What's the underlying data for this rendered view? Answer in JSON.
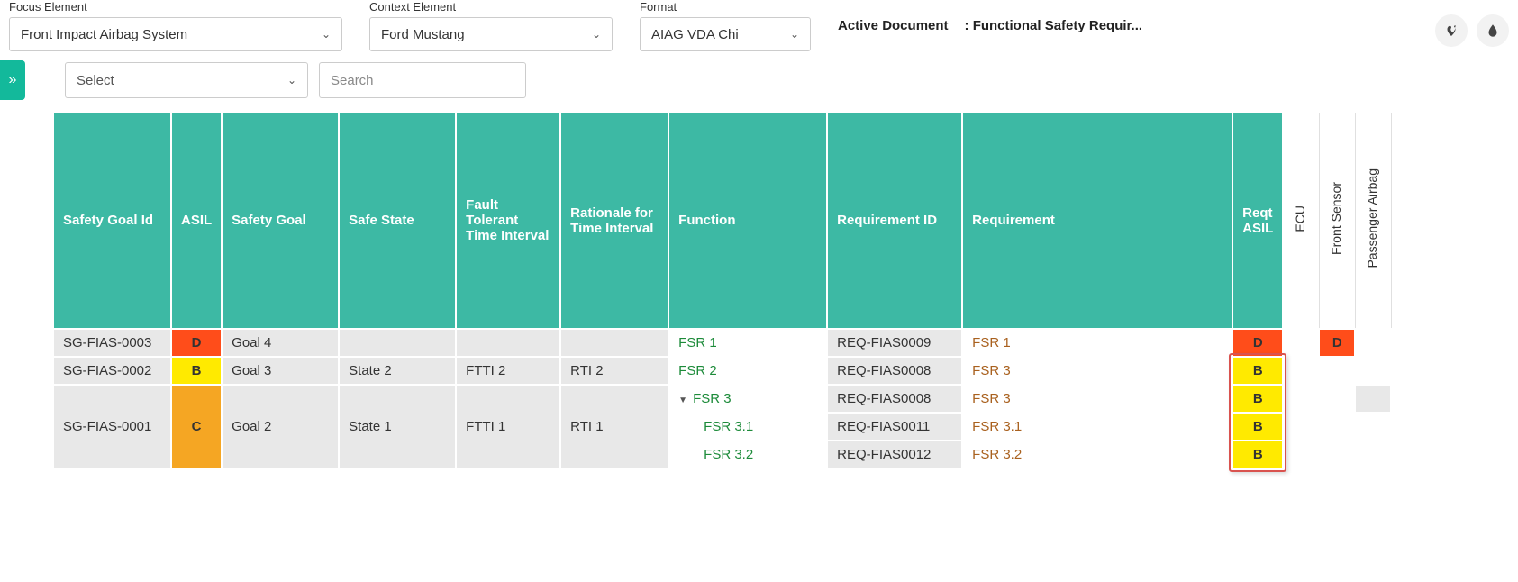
{
  "filters": {
    "focus": {
      "label": "Focus Element",
      "value": "Front Impact Airbag System"
    },
    "context": {
      "label": "Context Element",
      "value": "Ford Mustang"
    },
    "format": {
      "label": "Format",
      "value": "AIAG VDA Chi"
    }
  },
  "activeDoc": {
    "label": "Active Document",
    "value": ": Functional Safety Requir..."
  },
  "toolbar": {
    "select": "Select",
    "searchPlaceholder": "Search"
  },
  "columns": {
    "sgId": "Safety Goal Id",
    "asil": "ASIL",
    "sg": "Safety Goal",
    "safe": "Safe State",
    "ftti": "Fault Tolerant Time Interval",
    "rti": "Rationale for Time Interval",
    "fn": "Function",
    "reqId": "Requirement ID",
    "req": "Requirement",
    "rAsil": "Reqt ASIL",
    "v1": "ECU",
    "v2": "Front Sensor",
    "v3": "Passenger Airbag"
  },
  "colors": {
    "header": "#3db9a4",
    "rowGrey": "#e8e8e8",
    "asilD": "#ff4d1a",
    "asilB": "#ffea00",
    "asilC": "#f5a623",
    "fnGreen": "#1d8b3a",
    "reqBrown": "#a9611f",
    "highlight": "#d9534f"
  },
  "rows": [
    {
      "sgId": "SG-FIAS-0003",
      "asil": "D",
      "asilColor": "#ff4d1a",
      "sg": "Goal 4",
      "safe": "",
      "ftti": "",
      "rti": "",
      "fn": "FSR 1",
      "fnIndent": 0,
      "reqId": "REQ-FIAS0009",
      "req": "FSR 1",
      "rAsil": "D",
      "rAsilColor": "#ff4d1a",
      "v1": "",
      "v2": "D",
      "v2Color": "#ff4d1a",
      "v3": "",
      "span": 1
    },
    {
      "sgId": "SG-FIAS-0002",
      "asil": "B",
      "asilColor": "#ffea00",
      "sg": "Goal 3",
      "safe": "State 2",
      "ftti": "FTTI 2",
      "rti": "RTI 2",
      "fn": "FSR 2",
      "fnIndent": 0,
      "reqId": "REQ-FIAS0008",
      "req": "FSR 3",
      "rAsil": "B",
      "rAsilColor": "#ffea00",
      "v1": "",
      "v2": "",
      "v3": "",
      "span": 1
    },
    {
      "sgId": "SG-FIAS-0001",
      "asil": "C",
      "asilColor": "#f5a623",
      "sg": "Goal 2",
      "safe": "State 1",
      "ftti": "FTTI 1",
      "rti": "RTI 1",
      "span": 3,
      "sub": [
        {
          "fn": "FSR 3",
          "fnIndent": 0,
          "caret": true,
          "reqId": "REQ-FIAS0008",
          "req": "FSR 3",
          "rAsil": "B",
          "rAsilColor": "#ffea00",
          "v1": "",
          "v2": "",
          "v3": "",
          "v3bg": "#e8e8e8"
        },
        {
          "fn": "FSR 3.1",
          "fnIndent": 1,
          "reqId": "REQ-FIAS0011",
          "req": "FSR 3.1",
          "rAsil": "B",
          "rAsilColor": "#ffea00",
          "v1": "",
          "v2": "",
          "v3": ""
        },
        {
          "fn": "FSR 3.2",
          "fnIndent": 1,
          "reqId": "REQ-FIAS0012",
          "req": "FSR 3.2",
          "rAsil": "B",
          "rAsilColor": "#ffea00",
          "v1": "",
          "v2": "",
          "v3": ""
        }
      ]
    }
  ]
}
